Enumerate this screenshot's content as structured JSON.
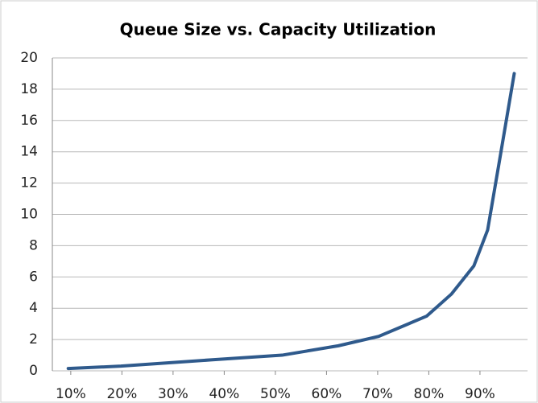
{
  "chart_data": {
    "type": "line",
    "title": "Queue Size vs. Capacity Utilization",
    "x": [
      9.5,
      19.8,
      37.4,
      51.3,
      62.3,
      70.2,
      79.6,
      84.4,
      88.8,
      91.5,
      93.8,
      96.7
    ],
    "series": [
      {
        "name": "Queue Size",
        "color": "#2f5a8c",
        "values": [
          0.15,
          0.3,
          0.7,
          1.0,
          1.6,
          2.2,
          3.5,
          4.9,
          6.7,
          9,
          13.4,
          19
        ]
      }
    ],
    "xlim": [
      6.4,
      99.3
    ],
    "xticks": [
      {
        "value": 10,
        "label": "10%"
      },
      {
        "value": 20,
        "label": "20%"
      },
      {
        "value": 30,
        "label": "30%"
      },
      {
        "value": 40,
        "label": "40%"
      },
      {
        "value": 50,
        "label": "50%"
      },
      {
        "value": 60,
        "label": "60%"
      },
      {
        "value": 70,
        "label": "70%"
      },
      {
        "value": 80,
        "label": "80%"
      },
      {
        "value": 90,
        "label": "90%"
      }
    ],
    "ylim": [
      0,
      20
    ],
    "yticks": [
      0,
      2,
      4,
      6,
      8,
      10,
      12,
      14,
      16,
      18,
      20
    ],
    "grid": true
  }
}
